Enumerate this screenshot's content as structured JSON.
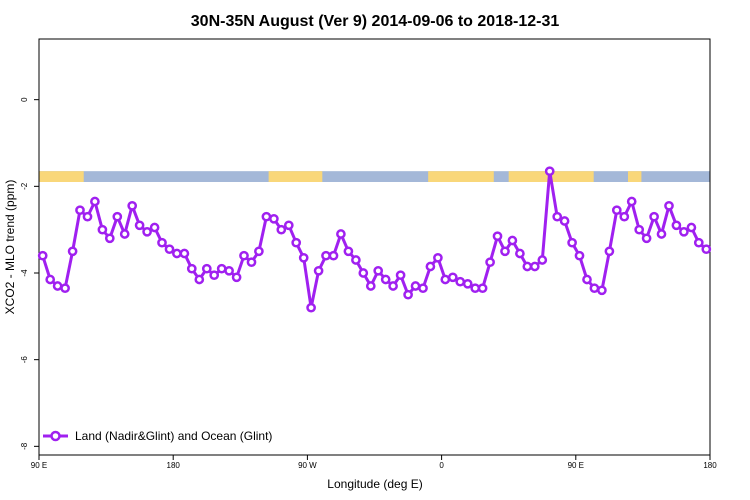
{
  "chart_data": {
    "type": "line",
    "title": "30N-35N August (Ver 9)   2014-09-06 to 2018-12-31",
    "xlabel": "Longitude (deg E)",
    "ylabel": "XCO2 - MLO trend (ppm)",
    "xlim": [
      90,
      540
    ],
    "ylim": [
      -8.2,
      1.4
    ],
    "x_ticks": [
      {
        "value": 90,
        "label": "90 E"
      },
      {
        "value": 180,
        "label": "180"
      },
      {
        "value": 270,
        "label": "90 W"
      },
      {
        "value": 360,
        "label": "0"
      },
      {
        "value": 450,
        "label": "90 E"
      },
      {
        "value": 540,
        "label": "180"
      }
    ],
    "y_ticks": [
      {
        "value": 0,
        "label": "0"
      },
      {
        "value": -2,
        "label": "-2"
      },
      {
        "value": -4,
        "label": "-4"
      },
      {
        "value": -6,
        "label": "-6"
      },
      {
        "value": -8,
        "label": "-8"
      }
    ],
    "surface_band": {
      "y_range": [
        -1.9,
        -1.65
      ],
      "land_color": "#f9d77a",
      "ocean_color": "#a4b8d8",
      "land_segments": [
        [
          90,
          120
        ],
        [
          244,
          280
        ],
        [
          351,
          395
        ],
        [
          405,
          462
        ],
        [
          485,
          494
        ]
      ]
    },
    "series": [
      {
        "name": "Land (Nadir&Glint) and Ocean (Glint)",
        "color": "#a020f0",
        "x": [
          92.5,
          97.5,
          102.5,
          107.5,
          112.5,
          117.5,
          122.5,
          127.5,
          132.5,
          137.5,
          142.5,
          147.5,
          152.5,
          157.5,
          162.5,
          167.5,
          172.5,
          177.5,
          182.5,
          187.5,
          192.5,
          197.5,
          202.5,
          207.5,
          212.5,
          217.5,
          222.5,
          227.5,
          232.5,
          237.5,
          242.5,
          247.5,
          252.5,
          257.5,
          262.5,
          267.5,
          272.5,
          277.5,
          282.5,
          287.5,
          292.5,
          297.5,
          302.5,
          307.5,
          312.5,
          317.5,
          322.5,
          327.5,
          332.5,
          337.5,
          342.5,
          347.5,
          352.5,
          357.5,
          362.5,
          367.5,
          372.5,
          377.5,
          382.5,
          387.5,
          392.5,
          397.5,
          402.5,
          407.5,
          412.5,
          417.5,
          422.5,
          427.5,
          432.5,
          437.5,
          442.5,
          447.5,
          452.5,
          457.5,
          462.5,
          467.5,
          472.5,
          477.5,
          482.5,
          487.5,
          492.5,
          497.5,
          502.5,
          507.5,
          512.5,
          517.5,
          522.5,
          527.5,
          532.5,
          537.5
        ],
        "values": [
          -3.6,
          -4.15,
          -4.3,
          -4.35,
          -3.5,
          -2.55,
          -2.7,
          -2.35,
          -3.0,
          -3.2,
          -2.7,
          -3.1,
          -2.45,
          -2.9,
          -3.05,
          -2.95,
          -3.3,
          -3.45,
          -3.55,
          -3.55,
          -3.9,
          -4.15,
          -3.9,
          -4.05,
          -3.9,
          -3.95,
          -4.1,
          -3.6,
          -3.75,
          -3.5,
          -2.7,
          -2.75,
          -3.0,
          -2.9,
          -3.3,
          -3.65,
          -4.8,
          -3.95,
          -3.6,
          -3.6,
          -3.1,
          -3.5,
          -3.7,
          -4.0,
          -4.3,
          -3.95,
          -4.15,
          -4.3,
          -4.05,
          -4.5,
          -4.3,
          -4.35,
          -3.85,
          -3.65,
          -4.15,
          -4.1,
          -4.2,
          -4.25,
          -4.35,
          -4.35,
          -3.75,
          -3.15,
          -3.5,
          -3.25,
          -3.55,
          -3.85,
          -3.85,
          -3.7,
          -1.65,
          -2.7,
          -2.8,
          -3.3,
          -3.6,
          -4.15,
          -4.35,
          -4.4,
          -3.5,
          -2.55,
          -2.7,
          -2.35,
          -3.0,
          -3.2,
          -2.7,
          -3.1,
          -2.45,
          -2.9,
          -3.05,
          -2.95,
          -3.3,
          -3.45
        ]
      }
    ],
    "legend": {
      "position": "bottom-left"
    },
    "grid": false
  }
}
